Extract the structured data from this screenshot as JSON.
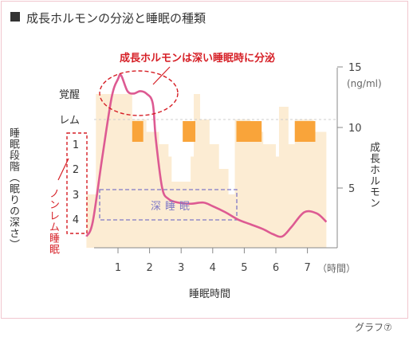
{
  "chart_data": {
    "type": "line",
    "title": "成長ホルモンの分泌と睡眠の種類",
    "xlabel": "睡眠時間",
    "x_unit": "（時間）",
    "x_ticks": [
      1,
      2,
      3,
      4,
      5,
      6,
      7
    ],
    "xlim": [
      0,
      7.6
    ],
    "sleep_axis": {
      "title": "睡眠段階（眠りの深さ）",
      "levels": [
        "覚醒",
        "レム",
        "1",
        "2",
        "3",
        "4"
      ],
      "nonrem_label": "ノンレム睡眠"
    },
    "hormone_axis": {
      "title": "成長ホルモン",
      "unit": "(ng/ml)",
      "ticks": [
        5,
        10,
        15
      ],
      "ylim": [
        0,
        18
      ]
    },
    "series": [
      {
        "name": "成長ホルモン",
        "x": [
          0.0,
          0.2,
          0.5,
          0.8,
          1.0,
          1.1,
          1.3,
          1.5,
          1.7,
          1.9,
          2.1,
          2.2,
          2.4,
          2.6,
          2.9,
          3.3,
          3.7,
          4.0,
          4.4,
          4.8,
          5.2,
          5.6,
          5.9,
          6.2,
          6.5,
          6.9,
          7.3,
          7.6
        ],
        "y": [
          1.0,
          2.2,
          7.5,
          12.5,
          14.0,
          14.3,
          13.0,
          12.8,
          13.0,
          12.8,
          12.0,
          9.0,
          5.0,
          4.1,
          3.8,
          3.7,
          3.8,
          3.5,
          3.0,
          2.4,
          2.0,
          1.6,
          1.2,
          1.0,
          1.8,
          3.0,
          2.9,
          2.2
        ]
      }
    ],
    "sleep_depth_series": {
      "name": "睡眠段階",
      "x": [
        0.0,
        0.25,
        0.3,
        1.3,
        1.45,
        1.7,
        1.9,
        2.3,
        2.6,
        2.7,
        3.1,
        3.3,
        3.4,
        3.6,
        3.9,
        4.2,
        4.5,
        4.7,
        5.0,
        5.2,
        5.6,
        6.0,
        6.1,
        6.4,
        6.6,
        7.2,
        7.6
      ],
      "level": [
        4,
        4,
        0,
        0,
        1,
        1,
        1.5,
        2,
        2.5,
        3.5,
        3.5,
        2.5,
        0,
        1,
        2,
        3,
        4,
        1,
        1,
        1.5,
        2,
        2.5,
        0.5,
        2,
        1,
        1.5,
        2
      ]
    },
    "rem_periods": [
      [
        1.45,
        1.8
      ],
      [
        3.05,
        3.45
      ],
      [
        4.75,
        5.55
      ],
      [
        6.6,
        7.25
      ]
    ],
    "annotations": {
      "peak_label": "成長ホルモンは深い睡眠時に分泌",
      "deep_sleep_label": "深睡眠"
    },
    "colors": {
      "hormone_line": "#dd5a92",
      "sleep_fill": "#fcecd3",
      "rem_fill": "#f9a43a",
      "annotation_red": "#d61f26",
      "deep_sleep_box": "#7f78c6",
      "axis": "#888888"
    },
    "caption": "グラフ⑦"
  }
}
